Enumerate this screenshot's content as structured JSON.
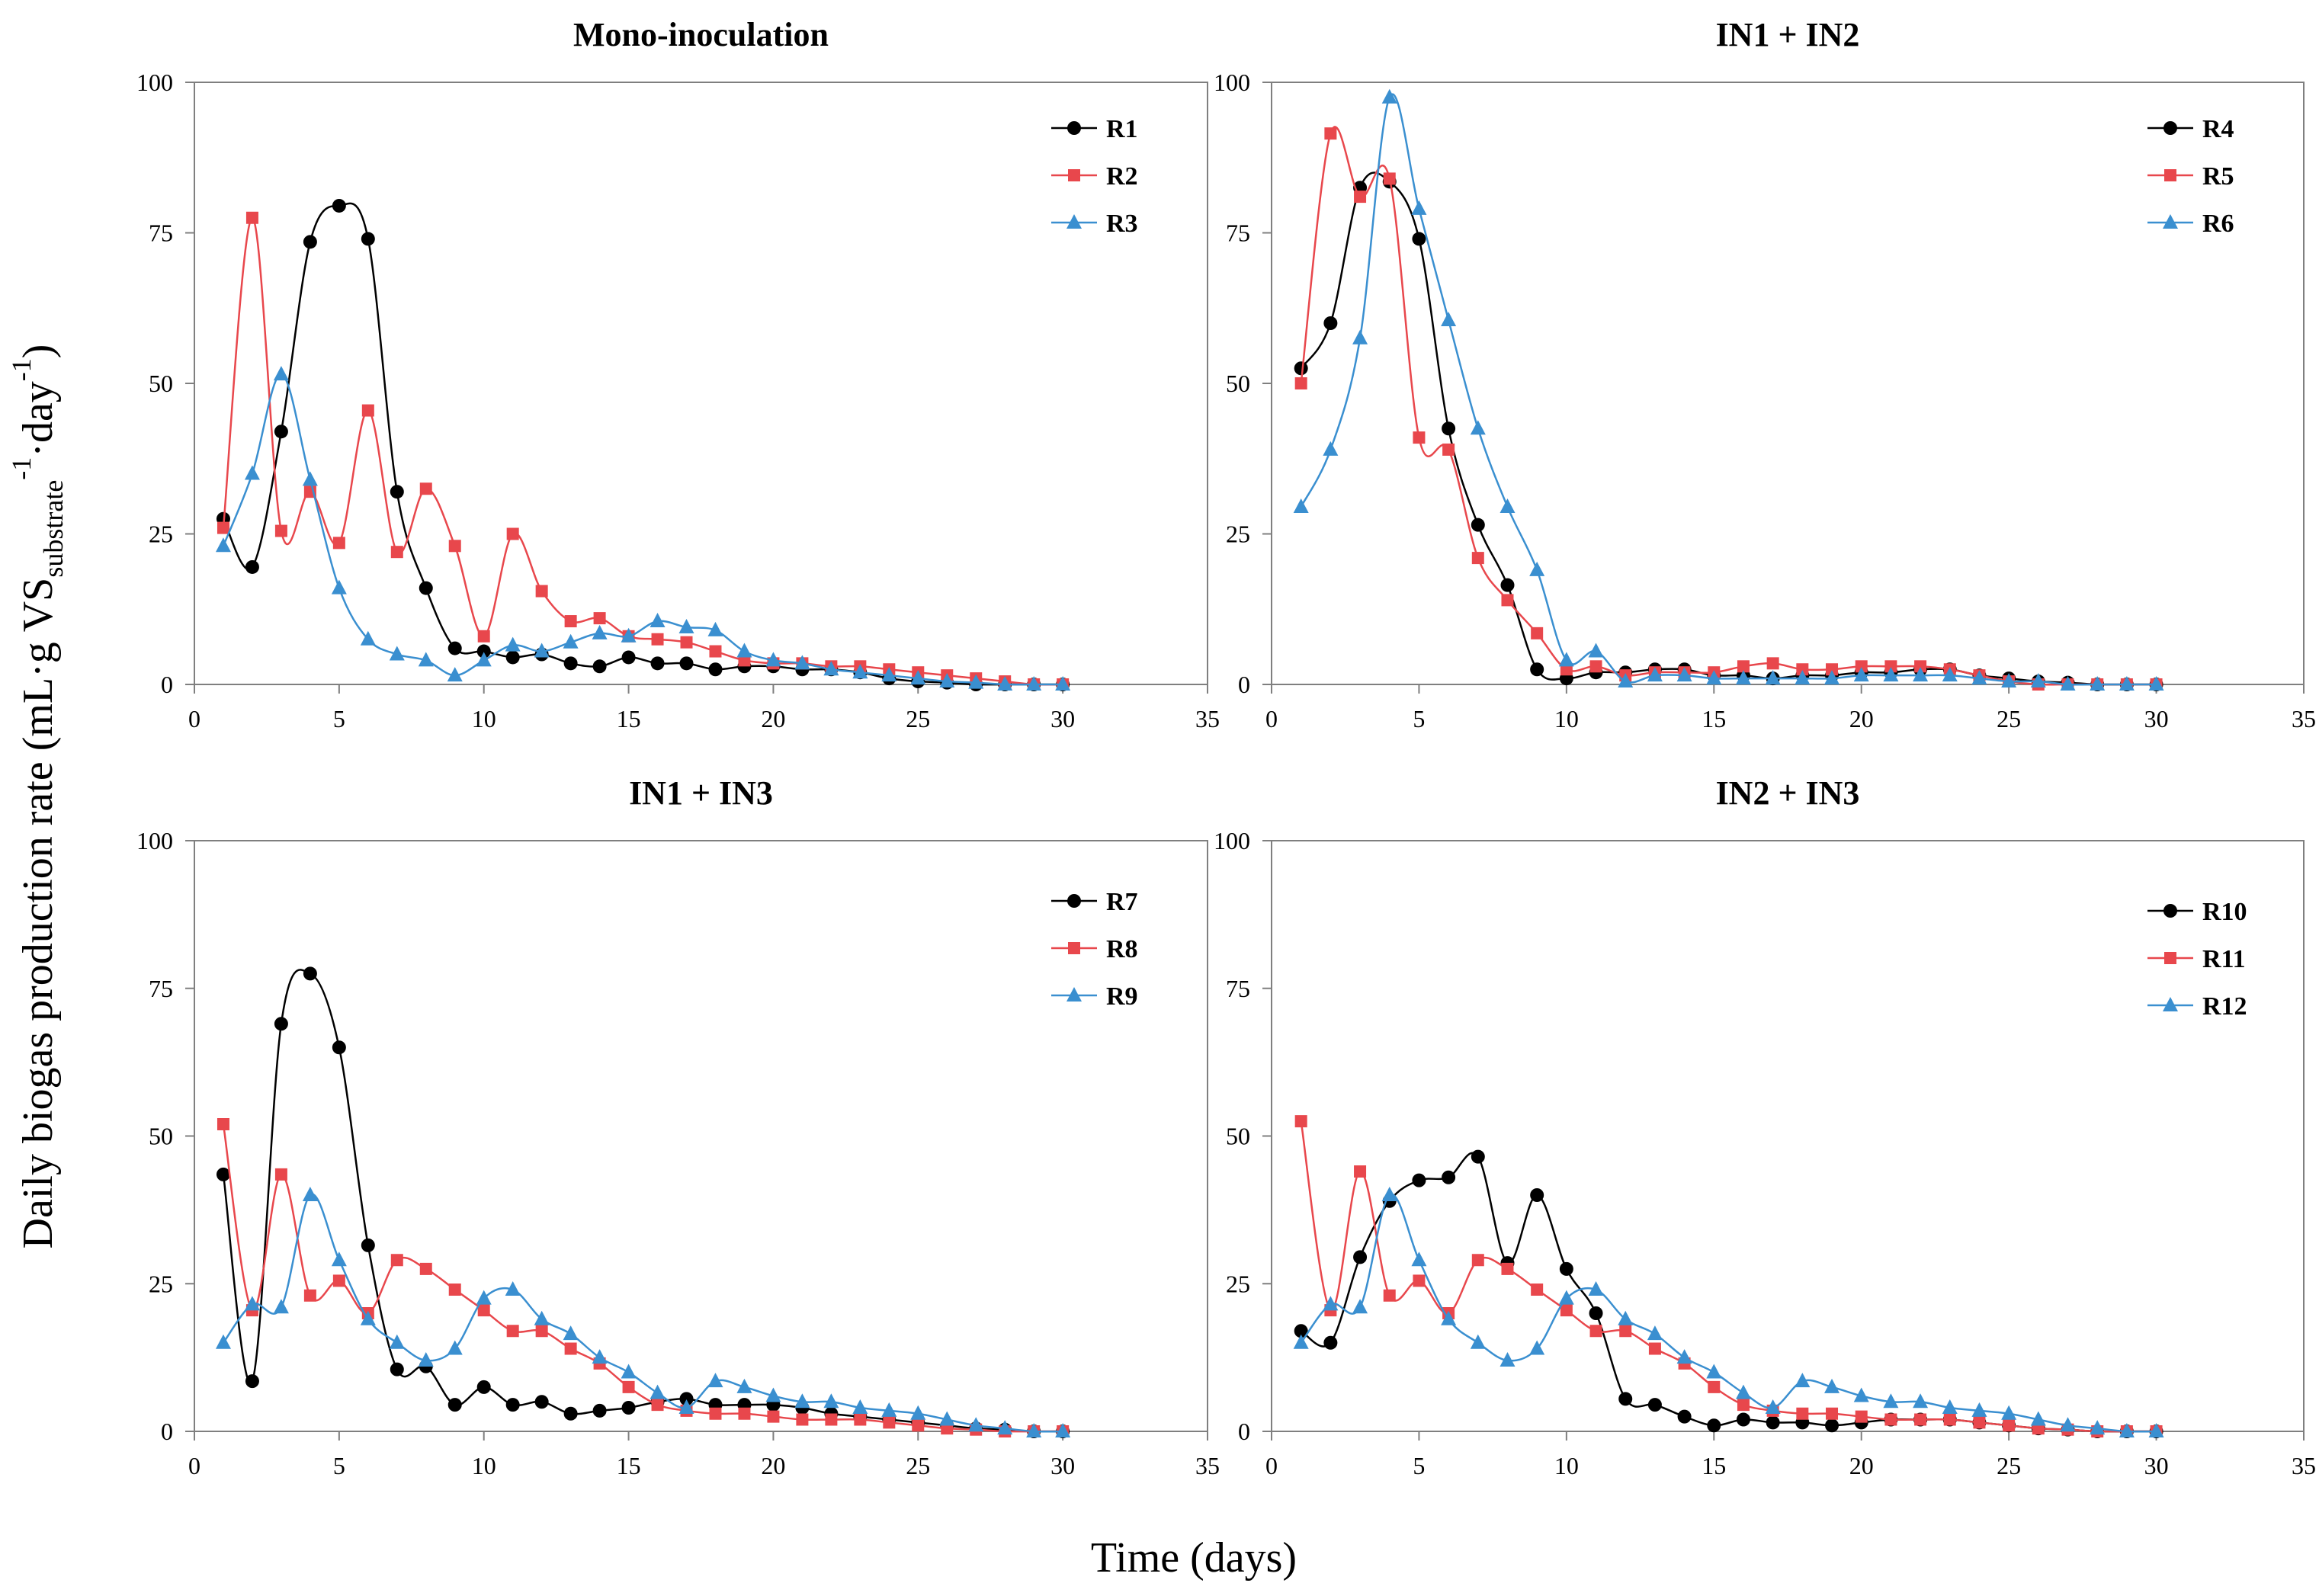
{
  "figure": {
    "ylabel": {
      "main": "Daily biogas production rate (mL·g VS",
      "sub": "substrate",
      "sup1": "-1",
      "mid": "·day",
      "sup2": "-1",
      "end": ")"
    },
    "xlabel": "Time (days)"
  },
  "colors": {
    "black": "#000000",
    "red": "#e8474c",
    "blue": "#3a8fd0"
  },
  "chart_data": [
    {
      "type": "line",
      "title": "Mono-inoculation",
      "xlim": [
        0,
        35
      ],
      "ylim": [
        0,
        100
      ],
      "xticks": [
        0,
        5,
        10,
        15,
        20,
        25,
        30,
        35
      ],
      "yticks": [
        0,
        25,
        50,
        75,
        100
      ],
      "legend_position": "top-right",
      "series": [
        {
          "name": "R1",
          "color": "black",
          "marker": "circle",
          "x": [
            1,
            2,
            3,
            4,
            5,
            6,
            7,
            8,
            9,
            10,
            11,
            12,
            13,
            14,
            15,
            16,
            17,
            18,
            19,
            20,
            21,
            22,
            23,
            24,
            25,
            26,
            27,
            28,
            29,
            30
          ],
          "y": [
            27.5,
            19.5,
            42,
            73.5,
            79.5,
            74,
            32,
            16,
            6,
            5.5,
            4.5,
            5,
            3.5,
            3,
            4.5,
            3.5,
            3.5,
            2.5,
            3,
            3,
            2.5,
            2.5,
            2,
            1,
            0.5,
            0.3,
            0,
            0,
            0,
            0
          ]
        },
        {
          "name": "R2",
          "color": "red",
          "marker": "square",
          "x": [
            1,
            2,
            3,
            4,
            5,
            6,
            7,
            8,
            9,
            10,
            11,
            12,
            13,
            14,
            15,
            16,
            17,
            18,
            19,
            20,
            21,
            22,
            23,
            24,
            25,
            26,
            27,
            28,
            29,
            30
          ],
          "y": [
            26,
            77.5,
            25.5,
            32,
            23.5,
            45.5,
            22,
            32.5,
            23,
            8,
            25,
            15.5,
            10.5,
            11,
            8,
            7.5,
            7,
            5.5,
            4,
            3.5,
            3.5,
            3,
            3,
            2.5,
            2,
            1.5,
            1,
            0.5,
            0,
            0
          ]
        },
        {
          "name": "R3",
          "color": "blue",
          "marker": "triangle",
          "x": [
            1,
            2,
            3,
            4,
            5,
            6,
            7,
            8,
            9,
            10,
            11,
            12,
            13,
            14,
            15,
            16,
            17,
            18,
            19,
            20,
            21,
            22,
            23,
            24,
            25,
            26,
            27,
            28,
            29,
            30
          ],
          "y": [
            23,
            35,
            51.5,
            34,
            16,
            7.5,
            5,
            4,
            1.5,
            4,
            6.5,
            5.5,
            7,
            8.5,
            8,
            10.5,
            9.5,
            9,
            5.5,
            4,
            3.5,
            2.5,
            2,
            1.5,
            1,
            0.5,
            0.3,
            0,
            0,
            0
          ]
        }
      ]
    },
    {
      "type": "line",
      "title": "IN1 + IN2",
      "xlim": [
        0,
        35
      ],
      "ylim": [
        0,
        100
      ],
      "xticks": [
        0,
        5,
        10,
        15,
        20,
        25,
        30,
        35
      ],
      "yticks": [
        0,
        25,
        50,
        75,
        100
      ],
      "legend_position": "top-right",
      "series": [
        {
          "name": "R4",
          "color": "black",
          "marker": "circle",
          "x": [
            1,
            2,
            3,
            4,
            5,
            6,
            7,
            8,
            9,
            10,
            11,
            12,
            13,
            14,
            15,
            16,
            17,
            18,
            19,
            20,
            21,
            22,
            23,
            24,
            25,
            26,
            27,
            28,
            29,
            30
          ],
          "y": [
            52.5,
            60,
            82.5,
            83.5,
            74,
            42.5,
            26.5,
            16.5,
            2.5,
            1,
            2,
            2,
            2.5,
            2.5,
            1.5,
            1.5,
            1,
            1.5,
            1.5,
            2,
            2,
            2.5,
            2.5,
            1.5,
            1,
            0.5,
            0.3,
            0,
            0,
            0
          ]
        },
        {
          "name": "R5",
          "color": "red",
          "marker": "square",
          "x": [
            1,
            2,
            3,
            4,
            5,
            6,
            7,
            8,
            9,
            10,
            11,
            12,
            13,
            14,
            15,
            16,
            17,
            18,
            19,
            20,
            21,
            22,
            23,
            24,
            25,
            26,
            27,
            28,
            29,
            30
          ],
          "y": [
            50,
            91.5,
            81,
            84,
            41,
            39,
            21,
            14,
            8.5,
            2.5,
            3,
            1.5,
            2,
            2,
            2,
            3,
            3.5,
            2.5,
            2.5,
            3,
            3,
            3,
            2.5,
            1.5,
            0.5,
            0,
            0,
            0,
            0,
            0
          ]
        },
        {
          "name": "R6",
          "color": "blue",
          "marker": "triangle",
          "x": [
            1,
            2,
            3,
            4,
            5,
            6,
            7,
            8,
            9,
            10,
            11,
            12,
            13,
            14,
            15,
            16,
            17,
            18,
            19,
            20,
            21,
            22,
            23,
            24,
            25,
            26,
            27,
            28,
            29,
            30
          ],
          "y": [
            29.5,
            39,
            57.5,
            97.5,
            79,
            60.5,
            42.5,
            29.5,
            19,
            4,
            5.5,
            0.5,
            1.5,
            1.5,
            1,
            1,
            1,
            1,
            1,
            1.5,
            1.5,
            1.5,
            1.5,
            1,
            0.5,
            0.5,
            0,
            0,
            0,
            0
          ]
        }
      ]
    },
    {
      "type": "line",
      "title": "IN1 + IN3",
      "xlim": [
        0,
        35
      ],
      "ylim": [
        0,
        100
      ],
      "xticks": [
        0,
        5,
        10,
        15,
        20,
        25,
        30,
        35
      ],
      "yticks": [
        0,
        25,
        50,
        75,
        100
      ],
      "legend_position": "top-right",
      "series": [
        {
          "name": "R7",
          "color": "black",
          "marker": "circle",
          "x": [
            1,
            2,
            3,
            4,
            5,
            6,
            7,
            8,
            9,
            10,
            11,
            12,
            13,
            14,
            15,
            16,
            17,
            18,
            19,
            20,
            21,
            22,
            23,
            24,
            25,
            26,
            27,
            28,
            29,
            30
          ],
          "y": [
            43.5,
            8.5,
            69,
            77.5,
            65,
            31.5,
            10.5,
            11,
            4.5,
            7.5,
            4.5,
            5,
            3,
            3.5,
            4,
            5,
            5.5,
            4.5,
            4.5,
            4.5,
            4,
            3,
            2.5,
            2,
            1.5,
            1,
            0.5,
            0.3,
            0,
            0
          ]
        },
        {
          "name": "R8",
          "color": "red",
          "marker": "square",
          "x": [
            1,
            2,
            3,
            4,
            5,
            6,
            7,
            8,
            9,
            10,
            11,
            12,
            13,
            14,
            15,
            16,
            17,
            18,
            19,
            20,
            21,
            22,
            23,
            24,
            25,
            26,
            27,
            28,
            29,
            30
          ],
          "y": [
            52,
            20.5,
            43.5,
            23,
            25.5,
            20,
            29,
            27.5,
            24,
            20.5,
            17,
            17,
            14,
            11.5,
            7.5,
            4.5,
            3.5,
            3,
            3,
            2.5,
            2,
            2,
            2,
            1.5,
            1,
            0.5,
            0.3,
            0,
            0,
            0
          ]
        },
        {
          "name": "R9",
          "color": "blue",
          "marker": "triangle",
          "x": [
            1,
            2,
            3,
            4,
            5,
            6,
            7,
            8,
            9,
            10,
            11,
            12,
            13,
            14,
            15,
            16,
            17,
            18,
            19,
            20,
            21,
            22,
            23,
            24,
            25,
            26,
            27,
            28,
            29,
            30
          ],
          "y": [
            15,
            21.5,
            21,
            40,
            29,
            19,
            15,
            12,
            14,
            22.5,
            24,
            19,
            16.5,
            12.5,
            10,
            6.5,
            4,
            8.5,
            7.5,
            6,
            5,
            5,
            4,
            3.5,
            3,
            2,
            1,
            0.5,
            0,
            0
          ]
        }
      ]
    },
    {
      "type": "line",
      "title": "IN2 + IN3",
      "xlim": [
        0,
        35
      ],
      "ylim": [
        0,
        100
      ],
      "xticks": [
        0,
        5,
        10,
        15,
        20,
        25,
        30,
        35
      ],
      "yticks": [
        0,
        25,
        50,
        75,
        100
      ],
      "legend_position": "top-right",
      "series": [
        {
          "name": "R10",
          "color": "black",
          "marker": "circle",
          "x": [
            1,
            2,
            3,
            4,
            5,
            6,
            7,
            8,
            9,
            10,
            11,
            12,
            13,
            14,
            15,
            16,
            17,
            18,
            19,
            20,
            21,
            22,
            23,
            24,
            25,
            26,
            27,
            28,
            29,
            30
          ],
          "y": [
            17,
            15,
            29.5,
            39,
            42.5,
            43,
            46.5,
            28.5,
            40,
            27.5,
            20,
            5.5,
            4.5,
            2.5,
            1,
            2,
            1.5,
            1.5,
            1,
            1.5,
            2,
            2,
            2,
            1.5,
            1,
            0.5,
            0.3,
            0,
            0,
            0
          ]
        },
        {
          "name": "R11",
          "color": "red",
          "marker": "square",
          "x": [
            1,
            2,
            3,
            4,
            5,
            6,
            7,
            8,
            9,
            10,
            11,
            12,
            13,
            14,
            15,
            16,
            17,
            18,
            19,
            20,
            21,
            22,
            23,
            24,
            25,
            26,
            27,
            28,
            29,
            30
          ],
          "y": [
            52.5,
            20.5,
            44,
            23,
            25.5,
            20,
            29,
            27.5,
            24,
            20.5,
            17,
            17,
            14,
            11.5,
            7.5,
            4.5,
            3.5,
            3,
            3,
            2.5,
            2,
            2,
            2,
            1.5,
            1,
            0.5,
            0.3,
            0,
            0,
            0
          ]
        },
        {
          "name": "R12",
          "color": "blue",
          "marker": "triangle",
          "x": [
            1,
            2,
            3,
            4,
            5,
            6,
            7,
            8,
            9,
            10,
            11,
            12,
            13,
            14,
            15,
            16,
            17,
            18,
            19,
            20,
            21,
            22,
            23,
            24,
            25,
            26,
            27,
            28,
            29,
            30
          ],
          "y": [
            15,
            21.5,
            21,
            40,
            29,
            19,
            15,
            12,
            14,
            22.5,
            24,
            19,
            16.5,
            12.5,
            10,
            6.5,
            4,
            8.5,
            7.5,
            6,
            5,
            5,
            4,
            3.5,
            3,
            2,
            1,
            0.5,
            0,
            0
          ]
        }
      ]
    }
  ]
}
